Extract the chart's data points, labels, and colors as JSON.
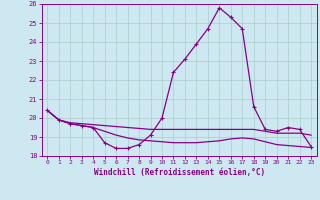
{
  "x": [
    0,
    1,
    2,
    3,
    4,
    5,
    6,
    7,
    8,
    9,
    10,
    11,
    12,
    13,
    14,
    15,
    16,
    17,
    18,
    19,
    20,
    21,
    22,
    23
  ],
  "line1": [
    20.4,
    19.9,
    19.7,
    19.6,
    19.5,
    18.7,
    18.4,
    18.4,
    18.6,
    19.1,
    20.0,
    22.4,
    23.1,
    23.9,
    24.7,
    25.8,
    25.3,
    24.7,
    20.6,
    19.4,
    19.3,
    19.5,
    19.4,
    18.5
  ],
  "line2": [
    20.4,
    19.9,
    19.75,
    19.7,
    19.65,
    19.6,
    19.55,
    19.5,
    19.45,
    19.4,
    19.4,
    19.4,
    19.4,
    19.4,
    19.4,
    19.4,
    19.4,
    19.4,
    19.4,
    19.3,
    19.2,
    19.2,
    19.2,
    19.1
  ],
  "line3": [
    20.4,
    19.9,
    19.7,
    19.6,
    19.5,
    19.3,
    19.1,
    18.95,
    18.85,
    18.8,
    18.75,
    18.7,
    18.7,
    18.7,
    18.75,
    18.8,
    18.9,
    18.95,
    18.9,
    18.75,
    18.6,
    18.55,
    18.5,
    18.45
  ],
  "bg_color": "#cde8f0",
  "line_color": "#880088",
  "grid_color": "#aacccc",
  "xlabel": "Windchill (Refroidissement éolien,°C)",
  "ylim": [
    18,
    26
  ],
  "xlim": [
    -0.5,
    23.5
  ],
  "yticks": [
    18,
    19,
    20,
    21,
    22,
    23,
    24,
    25,
    26
  ],
  "xticks": [
    0,
    1,
    2,
    3,
    4,
    5,
    6,
    7,
    8,
    9,
    10,
    11,
    12,
    13,
    14,
    15,
    16,
    17,
    18,
    19,
    20,
    21,
    22,
    23
  ]
}
